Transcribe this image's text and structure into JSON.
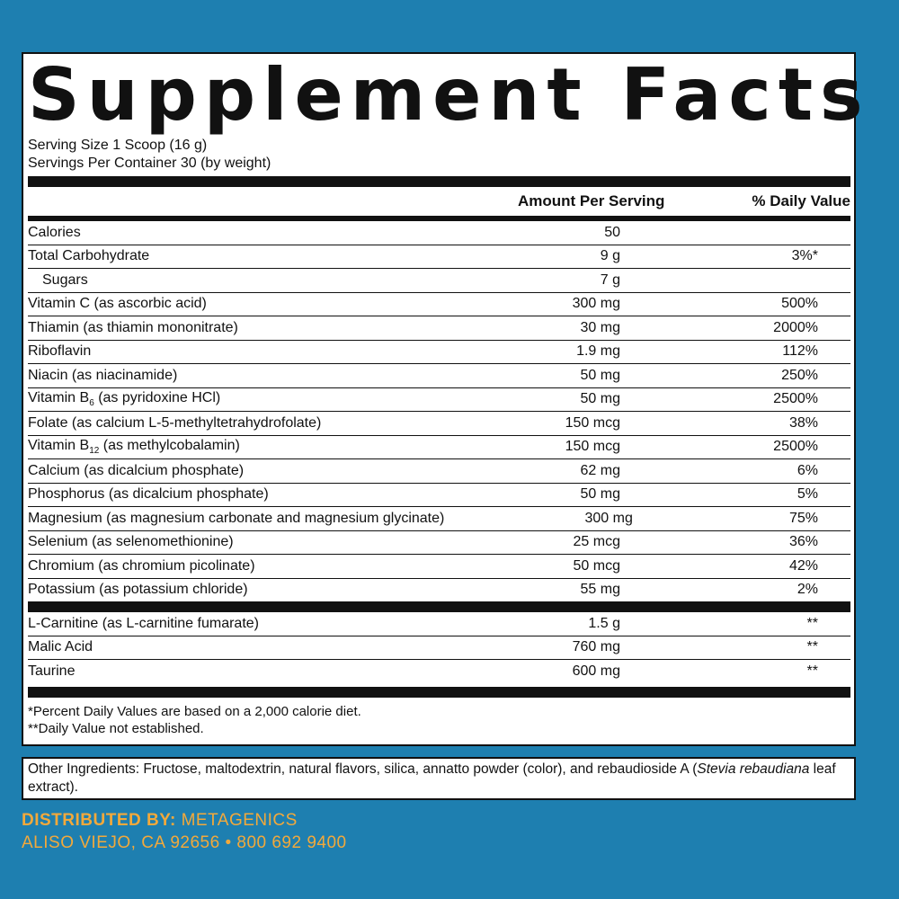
{
  "title": "Supplement Facts",
  "serving_size": "Serving Size 1 Scoop (16 g)",
  "servings_per_container": "Servings Per Container 30 (by weight)",
  "header": {
    "amount": "Amount Per Serving",
    "dv": "% Daily Value"
  },
  "rows": [
    {
      "name": "Calories",
      "amount": "50",
      "dv": ""
    },
    {
      "name": "Total Carbohydrate",
      "amount": "9 g",
      "dv": "3%*"
    },
    {
      "name": "Sugars",
      "amount": "7 g",
      "dv": ""
    },
    {
      "name": "Vitamin C (as ascorbic acid)",
      "amount": "300 mg",
      "dv": "500%"
    },
    {
      "name": "Thiamin (as thiamin mononitrate)",
      "amount": "30 mg",
      "dv": "2000%"
    },
    {
      "name": "Riboflavin",
      "amount": "1.9 mg",
      "dv": "112%"
    },
    {
      "name": "Niacin (as niacinamide)",
      "amount": "50 mg",
      "dv": "250%"
    },
    {
      "name_a": "Vitamin B",
      "name_sub": "6",
      "name_b": " (as pyridoxine HCl)",
      "amount": "50 mg",
      "dv": "2500%"
    },
    {
      "name": "Folate (as calcium L-5-methyltetrahydrofolate)",
      "amount": "150 mcg",
      "dv": "38%"
    },
    {
      "name_a": "Vitamin B",
      "name_sub": "12",
      "name_b": " (as methylcobalamin)",
      "amount": "150 mcg",
      "dv": "2500%"
    },
    {
      "name": "Calcium (as dicalcium phosphate)",
      "amount": "62 mg",
      "dv": "6%"
    },
    {
      "name": "Phosphorus (as dicalcium phosphate)",
      "amount": "50 mg",
      "dv": "5%"
    },
    {
      "name": "Magnesium (as magnesium carbonate and magnesium glycinate)",
      "amount": "300 mg",
      "dv": "75%"
    },
    {
      "name": "Selenium (as selenomethionine)",
      "amount": "25 mcg",
      "dv": "36%"
    },
    {
      "name": "Chromium (as chromium picolinate)",
      "amount": "50 mcg",
      "dv": "42%"
    },
    {
      "name": "Potassium (as potassium chloride)",
      "amount": "55 mg",
      "dv": "2%"
    }
  ],
  "rows2": [
    {
      "name": "L-Carnitine (as L-carnitine fumarate)",
      "amount": "1.5 g",
      "dv": "**"
    },
    {
      "name": "Malic Acid",
      "amount": "760 mg",
      "dv": "**"
    },
    {
      "name": "Taurine",
      "amount": "600 mg",
      "dv": "**"
    }
  ],
  "footnote1": "*Percent Daily Values are based on a 2,000 calorie diet.",
  "footnote2": "**Daily Value not established.",
  "other_ingredients": {
    "text": "Other Ingredients: Fructose, maltodextrin, natural flavors, silica, annatto powder (color), and rebaudioside A (",
    "italic": "Stevia rebaudiana",
    "end": " leaf extract)."
  },
  "distributor": {
    "label": "DISTRIBUTED BY:",
    "name": " METAGENICS",
    "address": "ALISO VIEJO, CA 92656 • 800 692 9400"
  },
  "colors": {
    "background": "#1e7fb0",
    "accent": "#f2a93b"
  }
}
